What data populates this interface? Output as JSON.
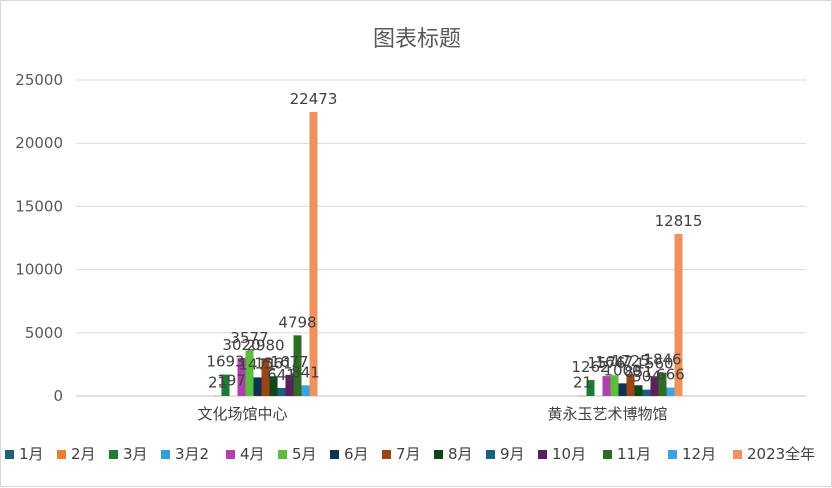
{
  "chart_data": {
    "type": "bar",
    "title": "图表标题",
    "categories": [
      "文化场馆中心",
      "黄永玉艺术博物馆"
    ],
    "ylim": [
      0,
      25000
    ],
    "yticks": [
      0,
      5000,
      10000,
      15000,
      20000,
      25000
    ],
    "grid": true,
    "legend_position": "bottom",
    "series": [
      {
        "name": "1月",
        "color": "#1f5f7a",
        "values": [
          null,
          null
        ]
      },
      {
        "name": "2月",
        "color": "#ed7d31",
        "values": [
          21,
          21
        ]
      },
      {
        "name": "3月",
        "color": "#1e7b34",
        "values": [
          1693,
          1262
        ]
      },
      {
        "name": "3月2",
        "color": "#2e9fd8",
        "values": [
          null,
          null
        ]
      },
      {
        "name": "4月",
        "color": "#b03fb0",
        "values": [
          3020,
          1576
        ]
      },
      {
        "name": "5月",
        "color": "#5bbf3b",
        "values": [
          3577,
          1647
        ]
      },
      {
        "name": "6月",
        "color": "#0e3350",
        "values": [
          1471,
          1000
        ]
      },
      {
        "name": "7月",
        "color": "#9b4512",
        "values": [
          2980,
          1725
        ]
      },
      {
        "name": "8月",
        "color": "#12461a",
        "values": [
          1561,
          851
        ]
      },
      {
        "name": "9月",
        "color": "#1a607f",
        "values": [
          641,
          504
        ]
      },
      {
        "name": "10月",
        "color": "#5b1e5f",
        "values": [
          1677,
          1560
        ]
      },
      {
        "name": "11月",
        "color": "#2d6e22",
        "values": [
          4798,
          1846
        ]
      },
      {
        "name": "12月",
        "color": "#3ba3e0",
        "values": [
          841,
          666
        ]
      },
      {
        "name": "2023全年",
        "color": "#f0925e",
        "values": [
          22473,
          12815
        ]
      }
    ],
    "data_labels": [
      [
        "",
        "21",
        "1693",
        "",
        "3020",
        "3577",
        "1471",
        "2980",
        "1561",
        "641",
        "1677",
        "4798",
        "841",
        "22473"
      ],
      [
        "",
        "21",
        "1262",
        "",
        "1576",
        "1647",
        "1000",
        "1725",
        "851",
        "504",
        "1560",
        "1846",
        "666",
        "12815"
      ]
    ],
    "extra_labels": [
      {
        "text": "197",
        "category": 0,
        "series": 1,
        "value": 197
      }
    ]
  }
}
